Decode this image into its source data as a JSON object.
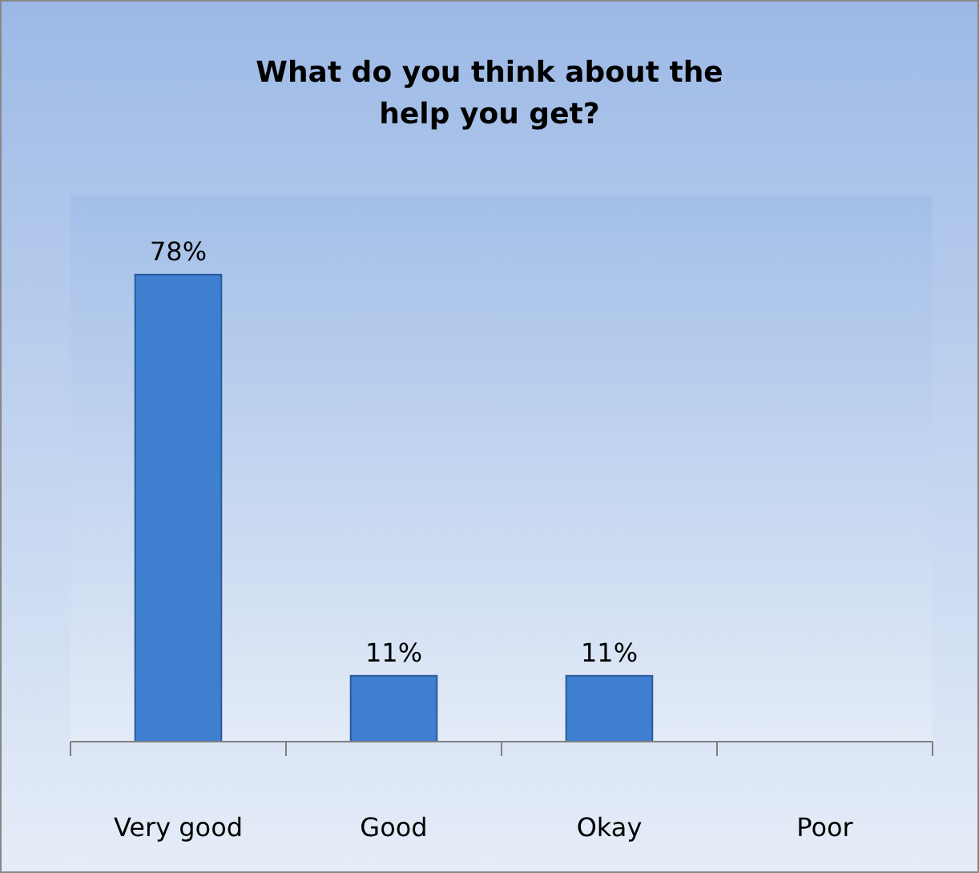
{
  "chart_data": {
    "type": "bar",
    "title": "What do you think about the help you get?",
    "categories": [
      "Very good",
      "Good",
      "Okay",
      "Poor"
    ],
    "values": [
      78,
      11,
      11,
      0
    ],
    "value_labels": [
      "78%",
      "11%",
      "11%",
      null
    ],
    "color": "#3f7fd0"
  }
}
